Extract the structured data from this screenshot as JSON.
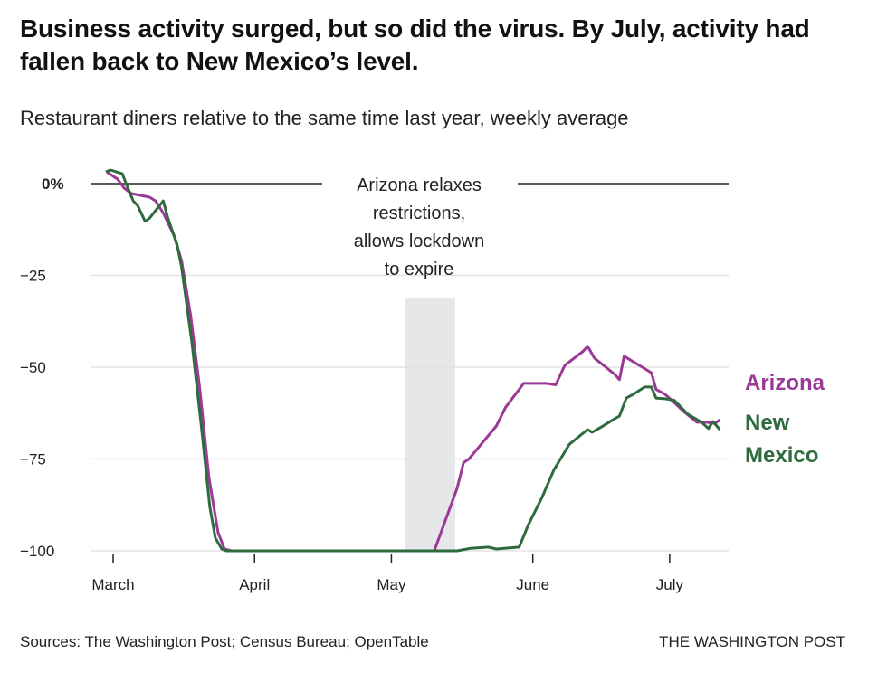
{
  "title": "Business activity surged, but so did the virus. By July, activity had fallen back to New Mexico’s level.",
  "subtitle": "Restaurant diners relative to the same time last year, weekly average",
  "source": "Sources: The Washington Post; Census Bureau; OpenTable",
  "credit": "THE WASHINGTON POST",
  "chart_data": {
    "type": "line",
    "title": "Business activity surged, but so did the virus. By July, activity had fallen back to New Mexico’s level.",
    "ylabel": "Restaurant diners vs. same time last year (%)",
    "x_unit": "days since March 1",
    "ylim": [
      -100,
      5
    ],
    "yticks": [
      {
        "v": 0,
        "label": "0%"
      },
      {
        "v": -25,
        "label": "−25"
      },
      {
        "v": -50,
        "label": "−50"
      },
      {
        "v": -75,
        "label": "−75"
      },
      {
        "v": -100,
        "label": "−100"
      }
    ],
    "xticks": [
      {
        "d": 0,
        "label": "March"
      },
      {
        "d": 31,
        "label": "April"
      },
      {
        "d": 61,
        "label": "May"
      },
      {
        "d": 92,
        "label": "June"
      },
      {
        "d": 122,
        "label": "July"
      }
    ],
    "annotation": {
      "lines": [
        "Arizona relaxes",
        "restrictions,",
        "allows lockdown",
        "to expire"
      ],
      "shade_from": 64,
      "shade_to": 75
    },
    "series": [
      {
        "name": "Arizona",
        "color": "#9b3a96",
        "points": [
          [
            -1.4,
            3.2
          ],
          [
            1,
            1.2
          ],
          [
            2.4,
            -1.2
          ],
          [
            4,
            -2.7
          ],
          [
            8,
            -3.7
          ],
          [
            9.3,
            -4.7
          ],
          [
            11,
            -8
          ],
          [
            13.3,
            -14
          ],
          [
            15,
            -21
          ],
          [
            17,
            -36
          ],
          [
            19,
            -56
          ],
          [
            21,
            -80
          ],
          [
            23,
            -95
          ],
          [
            24.4,
            -99.5
          ],
          [
            26,
            -100
          ],
          [
            70.4,
            -100
          ],
          [
            75.4,
            -83
          ],
          [
            76.8,
            -76
          ],
          [
            78,
            -75
          ],
          [
            80,
            -72
          ],
          [
            84,
            -66
          ],
          [
            86,
            -61
          ],
          [
            90,
            -54.4
          ],
          [
            95,
            -54.4
          ],
          [
            97,
            -54.8
          ],
          [
            99,
            -49.5
          ],
          [
            103,
            -45.7
          ],
          [
            104,
            -44.3
          ],
          [
            105.5,
            -47.5
          ],
          [
            107,
            -49
          ],
          [
            110,
            -52
          ],
          [
            111,
            -53.4
          ],
          [
            112,
            -47
          ],
          [
            116,
            -50
          ],
          [
            118,
            -51.5
          ],
          [
            119,
            -56
          ],
          [
            121,
            -57.4
          ],
          [
            123,
            -59.6
          ],
          [
            125,
            -62
          ],
          [
            128,
            -65
          ],
          [
            130,
            -65
          ],
          [
            132,
            -65.3
          ],
          [
            133,
            -64.3
          ]
        ]
      },
      {
        "name": "New Mexico",
        "color": "#2f6b3f",
        "points": [
          [
            -1.6,
            3.2
          ],
          [
            -0.6,
            3.7
          ],
          [
            2,
            2.7
          ],
          [
            3,
            -0.5
          ],
          [
            4.4,
            -4.7
          ],
          [
            5.4,
            -6
          ],
          [
            7,
            -10.3
          ],
          [
            8,
            -9.4
          ],
          [
            11,
            -4.7
          ],
          [
            12,
            -9.4
          ],
          [
            14,
            -16.5
          ],
          [
            15,
            -22.7
          ],
          [
            17.3,
            -43.6
          ],
          [
            19.3,
            -65.8
          ],
          [
            21.2,
            -88
          ],
          [
            22.4,
            -96.5
          ],
          [
            23.8,
            -99.5
          ],
          [
            24.8,
            -100
          ],
          [
            75.4,
            -100
          ],
          [
            78.4,
            -99.3
          ],
          [
            82.3,
            -99
          ],
          [
            84,
            -99.5
          ],
          [
            89,
            -99
          ],
          [
            91,
            -93
          ],
          [
            94,
            -85.5
          ],
          [
            96.6,
            -78
          ],
          [
            100,
            -71
          ],
          [
            104,
            -67
          ],
          [
            105,
            -67.7
          ],
          [
            107,
            -66.3
          ],
          [
            110,
            -64
          ],
          [
            111,
            -63.3
          ],
          [
            112.5,
            -58.4
          ],
          [
            114,
            -57.4
          ],
          [
            116.5,
            -55.4
          ],
          [
            118,
            -55.4
          ],
          [
            119,
            -58.4
          ],
          [
            121,
            -58.6
          ],
          [
            123,
            -59
          ],
          [
            126,
            -62.8
          ],
          [
            129,
            -65
          ],
          [
            130.5,
            -66.7
          ],
          [
            131.5,
            -64.8
          ],
          [
            133,
            -67
          ]
        ]
      }
    ],
    "legend": {
      "placement": "right, at line ends",
      "labels": [
        [
          "Arizona"
        ],
        [
          "New",
          "Mexico"
        ]
      ]
    }
  }
}
